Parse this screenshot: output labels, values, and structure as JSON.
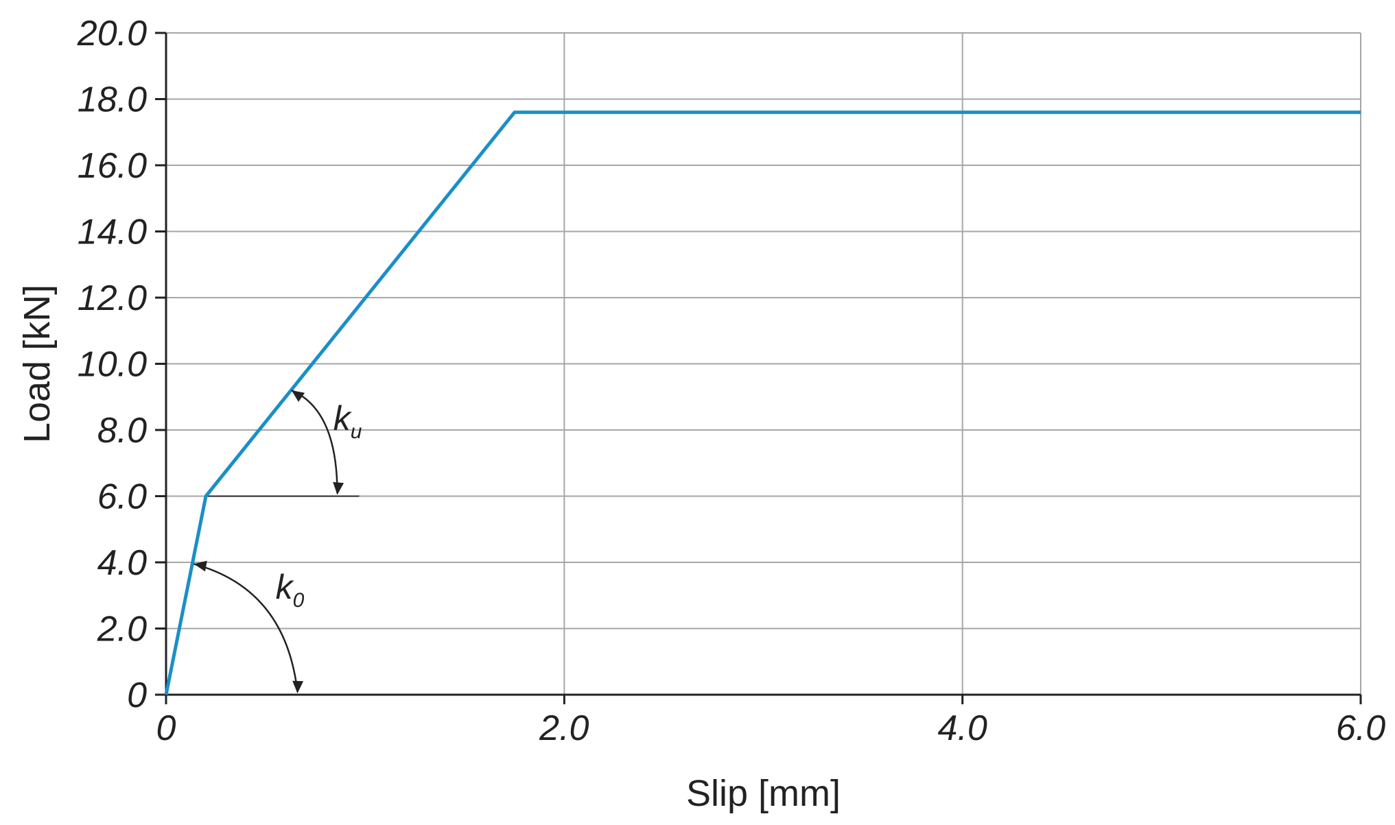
{
  "chart_data": {
    "type": "line",
    "xlabel": "Slip [mm]",
    "ylabel": "Load [kN]",
    "xlim": [
      0,
      6.0
    ],
    "ylim": [
      0,
      20.0
    ],
    "x_ticks": [
      0,
      2.0,
      4.0,
      6.0
    ],
    "x_tick_labels": [
      "0",
      "2.0",
      "4.0",
      "6.0"
    ],
    "y_ticks": [
      0,
      2.0,
      4.0,
      6.0,
      8.0,
      10.0,
      12.0,
      14.0,
      16.0,
      18.0,
      20.0
    ],
    "y_tick_labels": [
      "0",
      "2.0",
      "4.0",
      "6.0",
      "8.0",
      "10.0",
      "12.0",
      "14.0",
      "16.0",
      "18.0",
      "20.0"
    ],
    "grid": true,
    "series": [
      {
        "color": "#1a8fc7",
        "x": [
          0,
          0.2,
          1.75,
          6.0
        ],
        "y": [
          0,
          6.0,
          17.6,
          17.6
        ]
      }
    ],
    "reference_line": {
      "x": [
        0.2,
        0.97
      ],
      "y": [
        6.0,
        6.0
      ],
      "color": "#222222"
    },
    "annotations": [
      {
        "label": "k",
        "subscript": "u",
        "x": 0.84,
        "y": 8.0
      },
      {
        "label": "k",
        "subscript": "0",
        "x": 0.55,
        "y": 2.9
      }
    ]
  }
}
